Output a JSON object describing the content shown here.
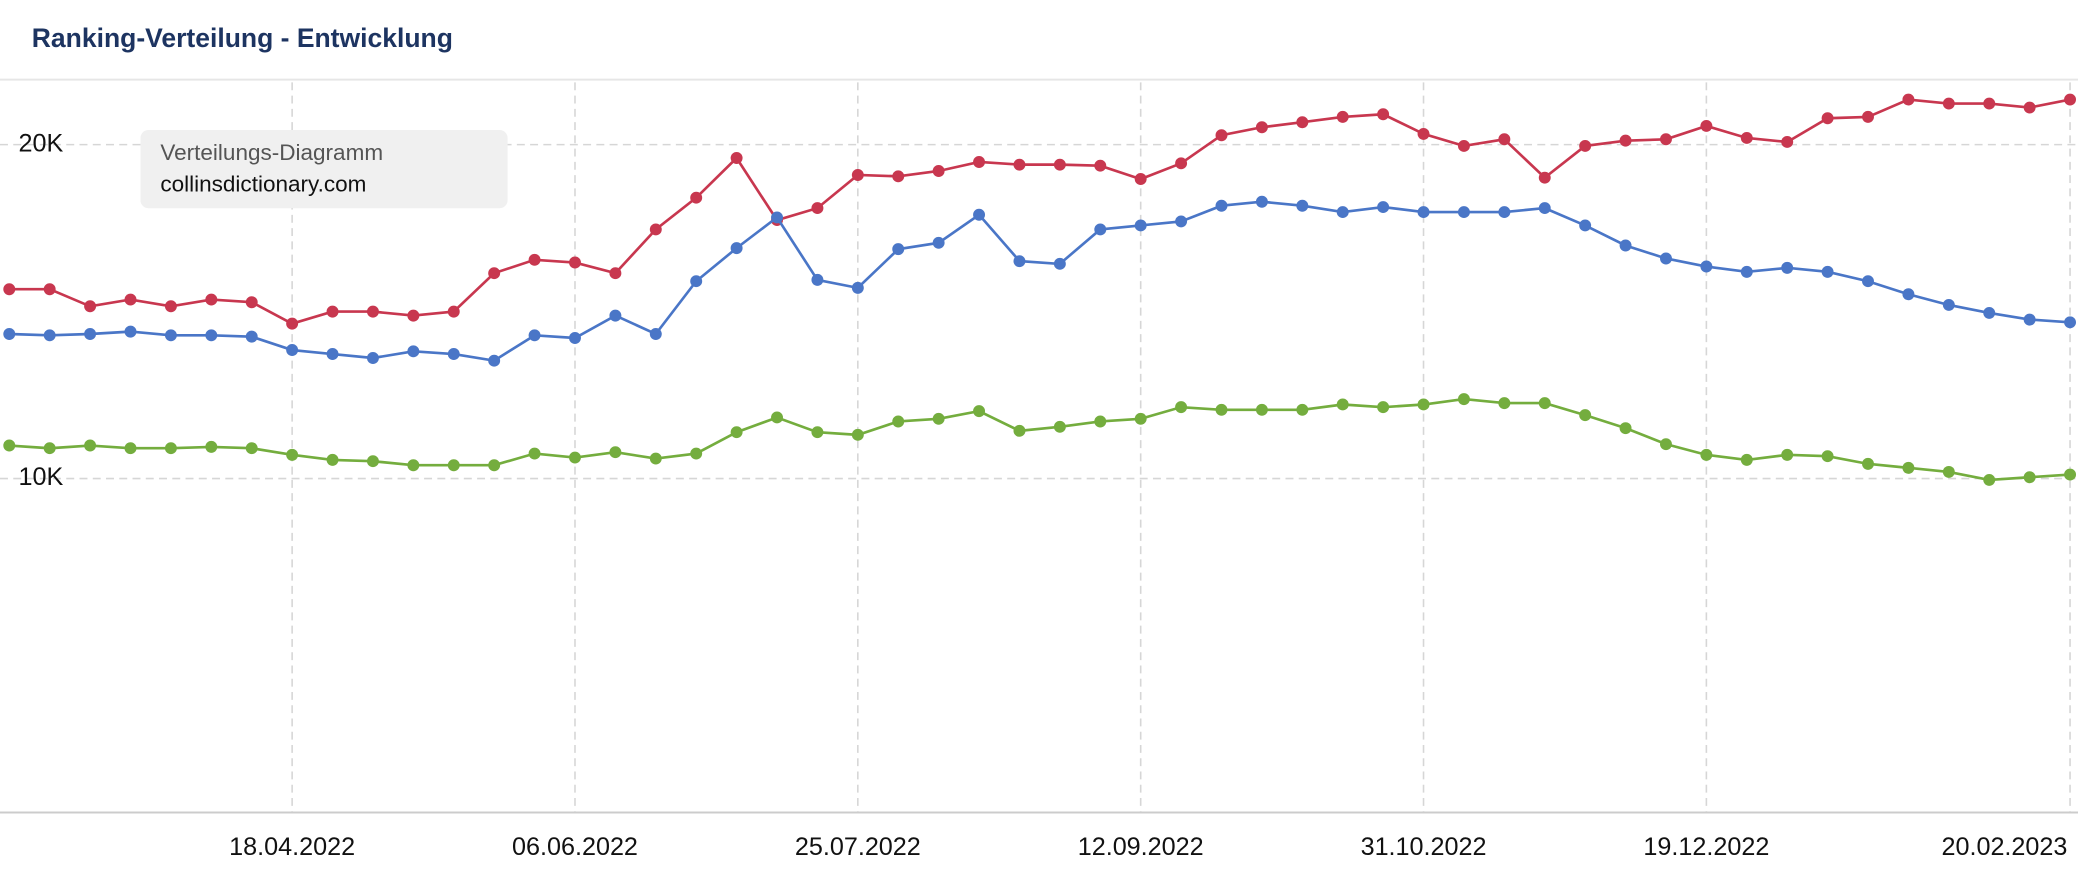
{
  "chart_data": {
    "type": "line",
    "title": "Ranking-Verteilung - Entwicklung",
    "annotations": [
      "Verteilungs-Diagramm",
      "collinsdictionary.com"
    ],
    "categories": [
      null,
      null,
      null,
      null,
      null,
      null,
      null,
      "18.04.2022",
      null,
      null,
      null,
      null,
      null,
      null,
      "06.06.2022",
      null,
      null,
      null,
      null,
      null,
      null,
      "25.07.2022",
      null,
      null,
      null,
      null,
      null,
      null,
      "12.09.2022",
      null,
      null,
      null,
      null,
      null,
      null,
      "31.10.2022",
      null,
      null,
      null,
      null,
      null,
      null,
      "19.12.2022",
      null,
      null,
      null,
      null,
      null,
      null,
      null,
      null,
      "20.02.2023"
    ],
    "ylim": [
      0,
      22000
    ],
    "yticks": [
      {
        "value": 10000,
        "label": "10K"
      },
      {
        "value": 20000,
        "label": "20K"
      }
    ],
    "grid": true,
    "series": [
      {
        "color": "#c8374f",
        "values": [
          15670,
          15670,
          15160,
          15360,
          15160,
          15360,
          15280,
          14640,
          15000,
          15000,
          14880,
          15000,
          16150,
          16550,
          16470,
          16150,
          17460,
          18410,
          19600,
          17740,
          18100,
          19090,
          19050,
          19210,
          19480,
          19400,
          19400,
          19370,
          18970,
          19440,
          20280,
          20520,
          20670,
          20830,
          20910,
          20320,
          19960,
          20160,
          19010,
          19960,
          20120,
          20160,
          20560,
          20200,
          20080,
          20790,
          20830,
          21350,
          21230,
          21230,
          21110,
          21350
        ]
      },
      {
        "color": "#4a76c7",
        "values": [
          14330,
          14290,
          14330,
          14400,
          14290,
          14290,
          14250,
          13850,
          13730,
          13610,
          13810,
          13730,
          13530,
          14290,
          14210,
          14880,
          14330,
          15910,
          16900,
          17820,
          15950,
          15710,
          16870,
          17060,
          17900,
          16510,
          16430,
          17460,
          17580,
          17700,
          18170,
          18290,
          18170,
          17980,
          18130,
          17980,
          17980,
          17980,
          18100,
          17580,
          16980,
          16590,
          16350,
          16190,
          16310,
          16190,
          15910,
          15520,
          15200,
          14960,
          14760,
          14680
        ]
      },
      {
        "color": "#74ad3e",
        "values": [
          10990,
          10910,
          10990,
          10910,
          10910,
          10950,
          10910,
          10710,
          10560,
          10520,
          10400,
          10400,
          10400,
          10750,
          10630,
          10790,
          10600,
          10750,
          11390,
          11830,
          11390,
          11310,
          11710,
          11790,
          12020,
          11430,
          11550,
          11710,
          11790,
          12140,
          12060,
          12060,
          12060,
          12220,
          12140,
          12220,
          12380,
          12260,
          12260,
          11900,
          11510,
          11030,
          10710,
          10560,
          10710,
          10670,
          10440,
          10320,
          10200,
          9960,
          10040,
          10120
        ]
      }
    ]
  }
}
